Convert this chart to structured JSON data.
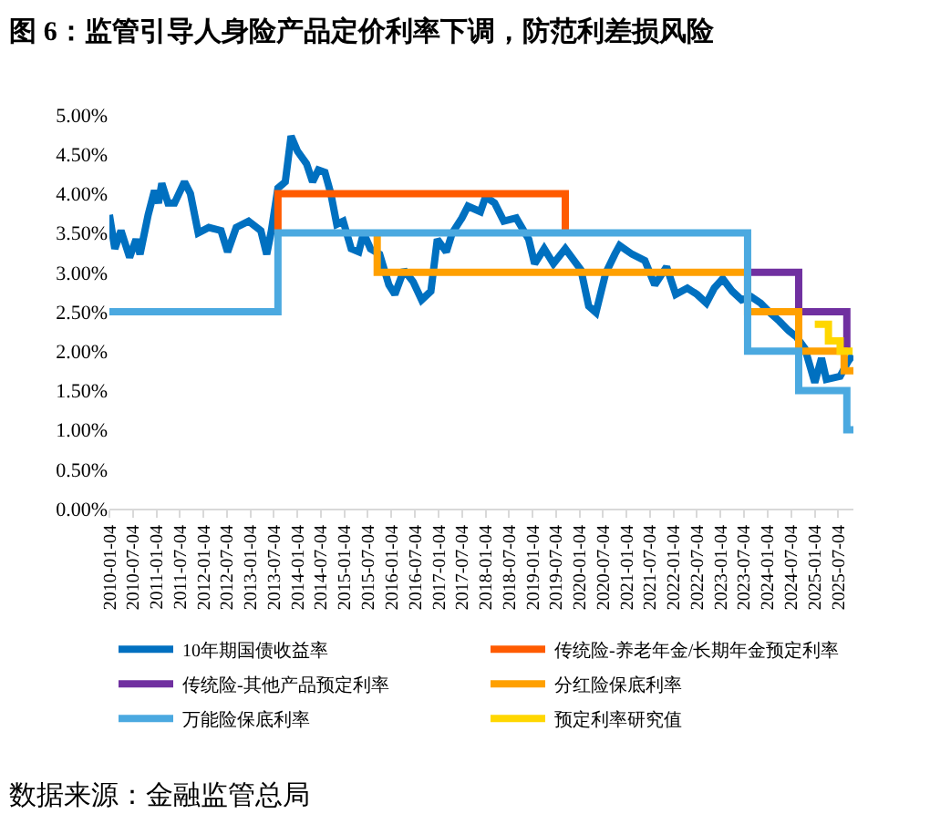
{
  "chart_data": {
    "type": "line",
    "title": "图 6：监管引导人身险产品定价利率下调，防范利差损风险",
    "annotations": [
      "数据来源：金融监管总局"
    ],
    "xlim": [
      "2010-01-04",
      "2025-10-31"
    ],
    "xticks": [
      "2010-01-04",
      "2010-07-04",
      "2011-01-04",
      "2011-07-04",
      "2012-01-04",
      "2012-07-04",
      "2013-01-04",
      "2013-07-04",
      "2014-01-04",
      "2014-07-04",
      "2015-01-04",
      "2015-07-04",
      "2016-01-04",
      "2016-07-04",
      "2017-01-04",
      "2017-07-04",
      "2018-01-04",
      "2018-07-04",
      "2019-01-04",
      "2019-07-04",
      "2020-01-04",
      "2020-07-04",
      "2021-01-04",
      "2021-07-04",
      "2022-01-04",
      "2022-07-04",
      "2023-01-04",
      "2023-07-04",
      "2024-01-04",
      "2024-07-04",
      "2025-01-04",
      "2025-07-04"
    ],
    "ylim": [
      0,
      5
    ],
    "yticks": [
      {
        "value": 0,
        "label": "0.00%"
      },
      {
        "value": 0.5,
        "label": "0.50%"
      },
      {
        "value": 1,
        "label": "1.00%"
      },
      {
        "value": 1.5,
        "label": "1.50%"
      },
      {
        "value": 2,
        "label": "2.00%"
      },
      {
        "value": 2.5,
        "label": "2.50%"
      },
      {
        "value": 3,
        "label": "3.00%"
      },
      {
        "value": 3.5,
        "label": "3.50%"
      },
      {
        "value": 4,
        "label": "4.00%"
      },
      {
        "value": 4.5,
        "label": "4.50%"
      },
      {
        "value": 5,
        "label": "5.00%"
      }
    ],
    "legend": "bottom",
    "series": [
      {
        "name": "10年期国债收益率",
        "color": "#0070c0",
        "x": [
          "2010-01-04",
          "2010-02-15",
          "2010-04-04",
          "2010-06-10",
          "2010-07-30",
          "2010-08-30",
          "2010-11-01",
          "2010-12-20",
          "2011-01-20",
          "2011-02-15",
          "2011-04-04",
          "2011-05-25",
          "2011-08-10",
          "2011-09-25",
          "2011-11-25",
          "2012-02-15",
          "2012-05-20",
          "2012-07-10",
          "2012-09-15",
          "2012-12-20",
          "2013-03-25",
          "2013-05-10",
          "2013-06-15",
          "2013-08-05",
          "2013-10-01",
          "2013-11-15",
          "2014-01-04",
          "2014-03-15",
          "2014-05-01",
          "2014-06-15",
          "2014-08-05",
          "2014-09-20",
          "2014-11-05",
          "2014-12-25",
          "2015-02-25",
          "2015-04-25",
          "2015-06-01",
          "2015-07-25",
          "2015-10-04",
          "2015-12-15",
          "2016-01-30",
          "2016-04-10",
          "2016-06-20",
          "2016-08-25",
          "2016-11-05",
          "2016-12-25",
          "2017-03-05",
          "2017-04-20",
          "2017-07-04",
          "2017-08-20",
          "2017-11-25",
          "2018-01-04",
          "2018-03-15",
          "2018-05-25",
          "2018-08-30",
          "2018-12-05",
          "2019-01-20",
          "2019-04-04",
          "2019-06-15",
          "2019-09-15",
          "2020-01-15",
          "2020-03-15",
          "2020-05-10",
          "2020-07-25",
          "2020-10-04",
          "2020-11-10",
          "2021-02-15",
          "2021-05-25",
          "2021-08-10",
          "2021-11-10",
          "2022-01-20",
          "2022-04-20",
          "2022-07-04",
          "2022-09-15",
          "2022-11-15",
          "2023-01-20",
          "2023-04-04",
          "2023-06-15",
          "2023-08-30",
          "2023-11-10",
          "2024-01-20",
          "2024-04-04",
          "2024-06-15",
          "2024-08-15",
          "2024-10-20",
          "2025-01-04",
          "2025-02-25",
          "2025-04-04",
          "2025-07-20",
          "2025-09-20",
          "2025-10-25"
        ],
        "values": [
          3.73,
          3.3,
          3.53,
          3.19,
          3.42,
          3.23,
          3.73,
          4.04,
          3.88,
          4.13,
          3.88,
          3.88,
          4.15,
          4.0,
          3.5,
          3.57,
          3.53,
          3.26,
          3.57,
          3.65,
          3.53,
          3.23,
          3.53,
          4.07,
          4.15,
          4.73,
          4.54,
          4.38,
          4.15,
          4.3,
          4.27,
          4.0,
          3.61,
          3.65,
          3.3,
          3.26,
          3.5,
          3.3,
          3.23,
          2.84,
          2.72,
          3.03,
          2.88,
          2.65,
          2.76,
          3.42,
          3.26,
          3.5,
          3.69,
          3.84,
          3.77,
          3.96,
          3.88,
          3.65,
          3.69,
          3.42,
          3.11,
          3.3,
          3.11,
          3.3,
          3.03,
          2.57,
          2.49,
          2.99,
          3.23,
          3.34,
          3.23,
          3.15,
          2.84,
          3.07,
          2.72,
          2.8,
          2.72,
          2.61,
          2.8,
          2.92,
          2.76,
          2.65,
          2.69,
          2.61,
          2.49,
          2.38,
          2.26,
          2.18,
          2.03,
          1.6,
          1.91,
          1.64,
          1.68,
          1.87,
          1.95
        ]
      },
      {
        "name": "传统险-养老年金/长期年金预定利率",
        "color": "#ff5b00",
        "type": "step",
        "x": [
          "2013-08-05",
          "2013-08-05",
          "2019-09-15"
        ],
        "values": [
          3.5,
          4.0,
          3.5
        ]
      },
      {
        "name": "传统险-其他产品预定利率",
        "color": "#7030a0",
        "type": "step",
        "x": [
          "2023-08-01",
          "2024-09-01",
          "2025-09-10"
        ],
        "values": [
          3.0,
          2.5,
          2.0
        ]
      },
      {
        "name": "分红险保底利率",
        "color": "#ffa000",
        "type": "step",
        "x": [
          "2015-09-15",
          "2015-09-15",
          "2023-08-01",
          "2024-09-01",
          "2025-08-20",
          "2025-10-31"
        ],
        "values": [
          3.5,
          3.0,
          2.5,
          2.0,
          1.75,
          1.75
        ]
      },
      {
        "name": "万能险保底利率",
        "color": "#4ba9e0",
        "type": "step",
        "x": [
          "2010-01-04",
          "2013-08-05",
          "2023-08-01",
          "2024-09-01",
          "2025-09-10",
          "2025-10-31"
        ],
        "values": [
          2.5,
          3.5,
          2.0,
          1.5,
          1.0,
          1.0
        ]
      },
      {
        "name": "预定利率研究值",
        "color": "#ffd700",
        "type": "step",
        "x": [
          "2025-01-04",
          "2025-04-20",
          "2025-07-20",
          "2025-10-25"
        ],
        "values": [
          2.34,
          2.13,
          2.0,
          2.0
        ]
      }
    ]
  }
}
